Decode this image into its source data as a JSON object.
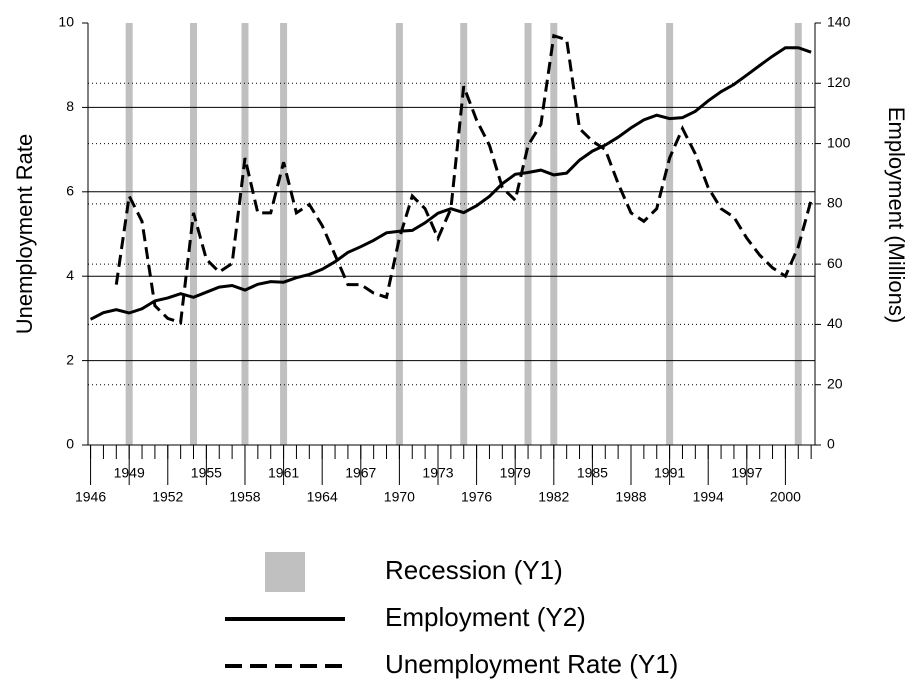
{
  "chart_data": {
    "type": "line",
    "y_label": "Unemployment Rate",
    "y2_label": "Employment (Millions)",
    "xlim": [
      1945.8,
      2002.3
    ],
    "xticks": [
      1946,
      1949,
      1952,
      1955,
      1958,
      1961,
      1964,
      1967,
      1970,
      1973,
      1976,
      1979,
      1982,
      1985,
      1988,
      1991,
      1994,
      1997,
      2000
    ],
    "x_minor": true,
    "ylim": [
      0,
      10
    ],
    "yticks": [
      0,
      2,
      4,
      6,
      8,
      10
    ],
    "y2lim": [
      0,
      140
    ],
    "y2ticks": [
      0,
      20,
      40,
      60,
      80,
      100,
      120,
      140
    ],
    "grid": true,
    "series": [
      {
        "name": "Recession (Y1)",
        "kind": "bar",
        "color": "#c0c0c0",
        "x": [
          1949,
          1954,
          1958,
          1961,
          1970,
          1975,
          1980,
          1982,
          1991,
          2001
        ],
        "values": [
          10,
          10,
          10,
          10,
          10,
          10,
          10,
          10,
          10,
          10
        ]
      },
      {
        "name": "Employment (Y2)",
        "kind": "solid",
        "color": "#000000",
        "axis": "y2",
        "x": [
          1946,
          1947,
          1948,
          1949,
          1950,
          1951,
          1952,
          1953,
          1954,
          1955,
          1956,
          1957,
          1958,
          1959,
          1960,
          1961,
          1962,
          1963,
          1964,
          1965,
          1966,
          1967,
          1968,
          1969,
          1970,
          1971,
          1972,
          1973,
          1974,
          1975,
          1976,
          1977,
          1978,
          1979,
          1980,
          1981,
          1982,
          1983,
          1984,
          1985,
          1986,
          1987,
          1988,
          1989,
          1990,
          1991,
          1992,
          1993,
          1994,
          1995,
          1996,
          1997,
          1998,
          1999,
          2000,
          2001,
          2002
        ],
        "values": [
          41.7,
          43.9,
          44.9,
          43.8,
          45.2,
          47.8,
          48.8,
          50.2,
          49.0,
          50.7,
          52.4,
          52.9,
          51.4,
          53.3,
          54.2,
          54.0,
          55.5,
          56.6,
          58.3,
          60.8,
          63.9,
          65.8,
          67.9,
          70.4,
          70.9,
          71.2,
          73.7,
          76.9,
          78.4,
          77.1,
          79.4,
          82.5,
          86.7,
          89.8,
          90.4,
          91.2,
          89.6,
          90.2,
          94.5,
          97.5,
          99.5,
          102.1,
          105.2,
          107.9,
          109.4,
          108.3,
          108.6,
          110.7,
          114.2,
          117.2,
          119.6,
          122.7,
          125.9,
          129.0,
          131.8,
          131.8,
          130.3
        ]
      },
      {
        "name": "Unemployment Rate (Y1)",
        "kind": "dashed",
        "color": "#000000",
        "x": [
          1948,
          1949,
          1950,
          1951,
          1952,
          1953,
          1954,
          1955,
          1956,
          1957,
          1958,
          1959,
          1960,
          1961,
          1962,
          1963,
          1964,
          1965,
          1966,
          1967,
          1968,
          1969,
          1970,
          1971,
          1972,
          1973,
          1974,
          1975,
          1976,
          1977,
          1978,
          1979,
          1980,
          1981,
          1982,
          1983,
          1984,
          1985,
          1986,
          1987,
          1988,
          1989,
          1990,
          1991,
          1992,
          1993,
          1994,
          1995,
          1996,
          1997,
          1998,
          1999,
          2000,
          2001,
          2002
        ],
        "values": [
          3.8,
          5.9,
          5.3,
          3.3,
          3.0,
          2.9,
          5.5,
          4.4,
          4.1,
          4.3,
          6.8,
          5.5,
          5.5,
          6.7,
          5.5,
          5.7,
          5.2,
          4.5,
          3.8,
          3.8,
          3.6,
          3.5,
          4.9,
          5.9,
          5.6,
          4.9,
          5.6,
          8.5,
          7.7,
          7.1,
          6.1,
          5.8,
          7.1,
          7.6,
          9.7,
          9.6,
          7.5,
          7.2,
          7.0,
          6.2,
          5.5,
          5.3,
          5.6,
          6.8,
          7.5,
          6.9,
          6.1,
          5.6,
          5.4,
          4.9,
          4.5,
          4.2,
          4.0,
          4.7,
          5.8
        ]
      }
    ]
  }
}
